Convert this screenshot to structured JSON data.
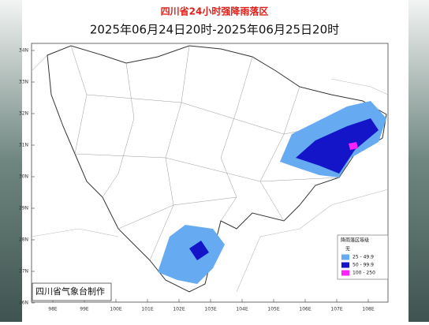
{
  "header": {
    "title": "四川省24小时强降雨落区",
    "subtitle": "2025年06月24日20时-2025年06月25日20时"
  },
  "map": {
    "lat_labels": [
      "34N",
      "33N",
      "32N",
      "31N",
      "30N",
      "29N",
      "28N",
      "27N",
      "26N"
    ],
    "lon_labels": [
      "98E",
      "99E",
      "100E",
      "101E",
      "102E",
      "103E",
      "104E",
      "105E",
      "106E",
      "107E",
      "108E"
    ],
    "credit": "四川省气象台制作"
  },
  "legend": {
    "title": "降雨落区等级",
    "items": [
      {
        "label": "无",
        "color": "#ffffff"
      },
      {
        "label": "25 - 49.9",
        "color": "#66aaf2"
      },
      {
        "label": "50 - 99.9",
        "color": "#1414c8"
      },
      {
        "label": "100 - 250",
        "color": "#ff22ff"
      }
    ]
  }
}
